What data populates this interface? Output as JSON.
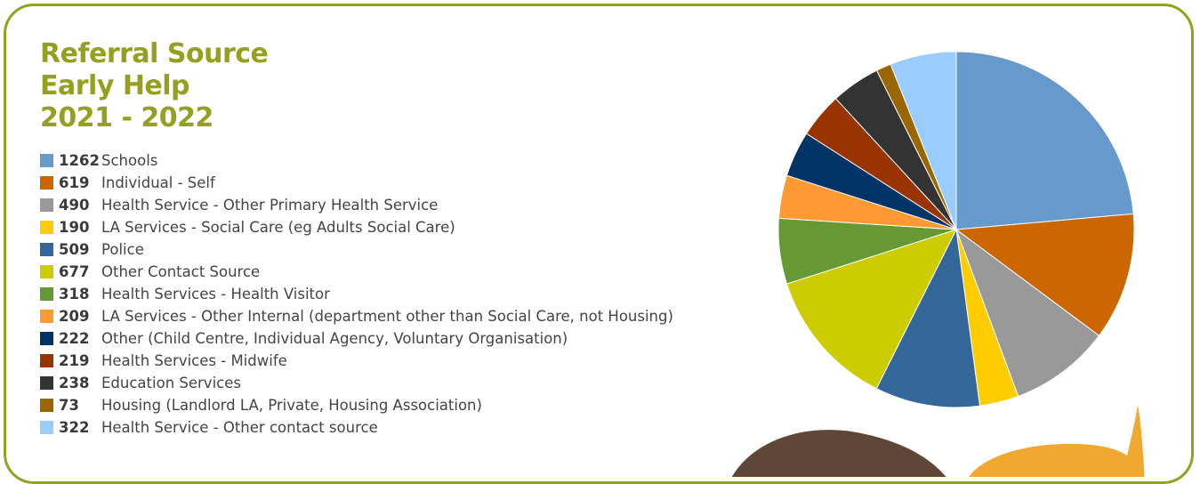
{
  "header": {
    "title_lines": [
      "Referral Source",
      "Early Help",
      "2021 - 2022"
    ]
  },
  "chart_data": {
    "type": "pie",
    "title": "Referral Source Early Help 2021 - 2022",
    "legend_position": "left",
    "slices": [
      {
        "label": "Schools",
        "value": 1262,
        "display": "1262",
        "color": "#6699cc"
      },
      {
        "label": "Individual - Self",
        "value": 619,
        "display": "619",
        "color": "#cc6600"
      },
      {
        "label": "Health Service - Other Primary Health Service",
        "value": 490,
        "display": "490",
        "color": "#999999"
      },
      {
        "label": "LA Services - Social Care (eg Adults Social Care)",
        "value": 190,
        "display": "190",
        "color": "#ffcc00"
      },
      {
        "label": "Police",
        "value": 509,
        "display": "509",
        "color": "#336699"
      },
      {
        "label": "Other Contact Source",
        "value": 677,
        "display": "677",
        "color": "#cccc00"
      },
      {
        "label": "Health Services - Health Visitor",
        "value": 318,
        "display": "318",
        "color": "#669933"
      },
      {
        "label": "LA Services - Other Internal (department other than Social Care, not Housing)",
        "value": 209,
        "display": "209",
        "color": "#ff9933"
      },
      {
        "label": "Other (Child Centre, Individual Agency, Voluntary Organisation)",
        "value": 222,
        "display": "222",
        "color": "#003366"
      },
      {
        "label": "Health Services - Midwife",
        "value": 219,
        "display": "219",
        "color": "#993300"
      },
      {
        "label": "Education Services",
        "value": 238,
        "display": "238",
        "color": "#333333"
      },
      {
        "label": "Housing (Landlord LA, Private, Housing Association)",
        "value": 73,
        "display": "73",
        "color": "#996600"
      },
      {
        "label": "Health Service - Other contact source",
        "value": 322,
        "display": "322",
        "color": "#99ccff"
      }
    ]
  },
  "colors": {
    "accent": "#95a11e",
    "decor_brown": "#5e4736",
    "decor_orange": "#f0a830"
  },
  "decor": {
    "bottom_shapes": [
      "brown-blob-icon",
      "orange-speech-bubble-icon"
    ]
  }
}
